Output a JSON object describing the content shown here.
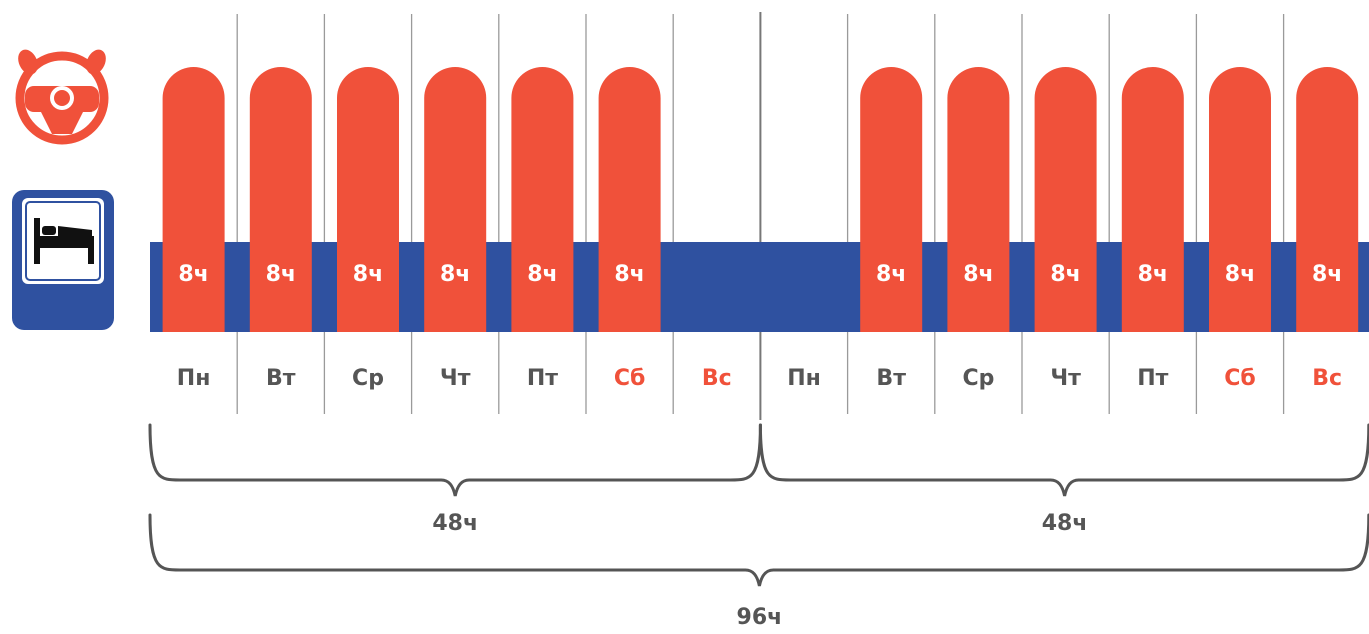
{
  "colors": {
    "drive": "#f0513a",
    "rest": "#2f51a0",
    "weekday_text": "#555555",
    "weekend_text": "#f0513a",
    "grid": "#9a9a9a",
    "brace": "#555555",
    "sleep_icon_bg": "#2f51a0"
  },
  "icons": {
    "drive": "steering-wheel-icon",
    "rest": "bed-icon"
  },
  "days": [
    {
      "label": "Пн",
      "weekend": false,
      "hours": "8ч"
    },
    {
      "label": "Вт",
      "weekend": false,
      "hours": "8ч"
    },
    {
      "label": "Ср",
      "weekend": false,
      "hours": "8ч"
    },
    {
      "label": "Чт",
      "weekend": false,
      "hours": "8ч"
    },
    {
      "label": "Пт",
      "weekend": false,
      "hours": "8ч"
    },
    {
      "label": "Сб",
      "weekend": true,
      "hours": "8ч"
    },
    {
      "label": "Вс",
      "weekend": true,
      "hours": ""
    },
    {
      "label": "Пн",
      "weekend": false,
      "hours": ""
    },
    {
      "label": "Вт",
      "weekend": false,
      "hours": "8ч"
    },
    {
      "label": "Ср",
      "weekend": false,
      "hours": "8ч"
    },
    {
      "label": "Чт",
      "weekend": false,
      "hours": "8ч"
    },
    {
      "label": "Пт",
      "weekend": false,
      "hours": "8ч"
    },
    {
      "label": "Сб",
      "weekend": true,
      "hours": "8ч"
    },
    {
      "label": "Вс",
      "weekend": true,
      "hours": "8ч"
    }
  ],
  "weeks": [
    {
      "total": "48ч"
    },
    {
      "total": "48ч"
    }
  ],
  "grand_total": "96ч"
}
